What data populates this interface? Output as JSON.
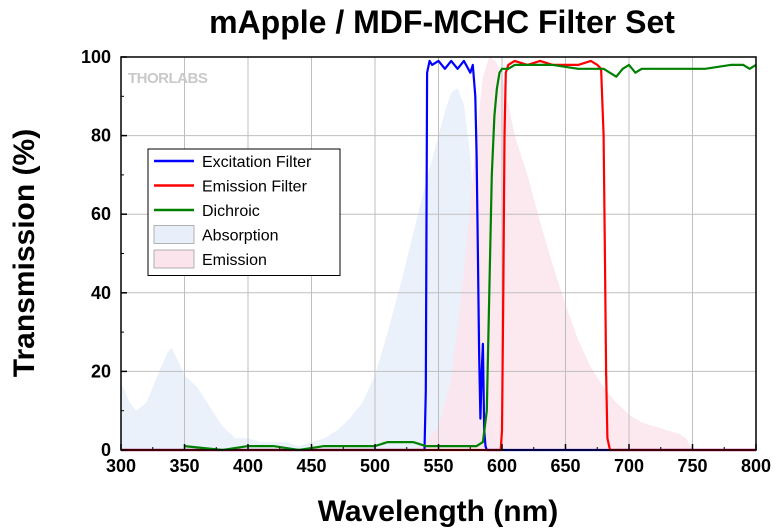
{
  "chart_data": {
    "type": "area",
    "title": "mApple / MDF-MCHC Filter Set",
    "xlabel": "Wavelength (nm)",
    "ylabel": "Transmission (%)",
    "xlim": [
      300,
      800
    ],
    "ylim": [
      0,
      100
    ],
    "xticks": [
      300,
      350,
      400,
      450,
      500,
      550,
      600,
      650,
      700,
      750,
      800
    ],
    "yticks": [
      0,
      20,
      40,
      60,
      80,
      100
    ],
    "grid": true,
    "legend_position": "left-middle",
    "watermark": "THORLABS",
    "series": [
      {
        "name": "Excitation Filter",
        "kind": "line",
        "color": "#0000ff",
        "x": [
          300,
          539,
          540,
          541,
          543,
          545,
          550,
          555,
          560,
          565,
          570,
          575,
          577,
          579,
          580,
          581,
          582,
          583,
          584,
          585,
          586,
          587,
          588,
          590,
          600,
          700,
          800
        ],
        "y": [
          0,
          0,
          15,
          96,
          99,
          98,
          99,
          97,
          99,
          97,
          99,
          96,
          98,
          90,
          75,
          50,
          25,
          8,
          20,
          27,
          5,
          1,
          0,
          0,
          0,
          0,
          0
        ]
      },
      {
        "name": "Emission Filter",
        "kind": "line",
        "color": "#ff0000",
        "x": [
          300,
          599,
          600,
          601,
          602,
          603,
          605,
          610,
          620,
          630,
          640,
          650,
          660,
          670,
          675,
          678,
          680,
          681,
          682,
          683,
          685,
          700,
          800
        ],
        "y": [
          0,
          0,
          5,
          40,
          80,
          96,
          98,
          99,
          98,
          99,
          98,
          98,
          98,
          99,
          98,
          97,
          80,
          50,
          20,
          3,
          0,
          0,
          0
        ],
        "extra": [
          [
            603,
            99
          ],
          [
            620,
            99
          ],
          [
            640,
            99
          ],
          [
            660,
            99
          ]
        ]
      },
      {
        "name": "Dichroic",
        "kind": "line",
        "color": "#008000",
        "x": [
          350,
          380,
          400,
          420,
          440,
          460,
          480,
          500,
          510,
          520,
          530,
          540,
          550,
          560,
          570,
          575,
          580,
          585,
          588,
          590,
          592,
          594,
          596,
          598,
          600,
          605,
          610,
          620,
          640,
          660,
          680,
          690,
          695,
          700,
          705,
          710,
          720,
          740,
          760,
          780,
          790,
          795,
          800
        ],
        "y": [
          1,
          0,
          1,
          1,
          0,
          1,
          1,
          1,
          2,
          2,
          2,
          1,
          1,
          1,
          1,
          1,
          1,
          2,
          10,
          40,
          70,
          85,
          92,
          96,
          97,
          97,
          98,
          98,
          98,
          97,
          97,
          95,
          97,
          98,
          96,
          97,
          97,
          97,
          97,
          98,
          98,
          97,
          98
        ]
      },
      {
        "name": "Absorption",
        "kind": "area",
        "color": "#e8eefa",
        "x": [
          300,
          303,
          307,
          312,
          320,
          330,
          337,
          340,
          343,
          350,
          360,
          370,
          380,
          390,
          400,
          410,
          420,
          430,
          440,
          450,
          460,
          470,
          480,
          490,
          500,
          510,
          520,
          530,
          540,
          550,
          555,
          560,
          565,
          570,
          575,
          580,
          585,
          590,
          595,
          600
        ],
        "y": [
          17,
          15,
          12,
          10,
          12,
          20,
          25,
          26,
          24,
          19,
          16,
          11,
          6,
          3,
          3,
          2,
          2,
          2,
          1,
          2,
          3,
          5,
          8,
          12,
          19,
          30,
          42,
          55,
          68,
          80,
          86,
          91,
          92,
          88,
          75,
          50,
          25,
          8,
          2,
          0
        ]
      },
      {
        "name": "Emission",
        "kind": "area",
        "color": "#fbe4ec",
        "x": [
          530,
          540,
          550,
          560,
          570,
          580,
          585,
          590,
          595,
          600,
          605,
          610,
          620,
          630,
          640,
          650,
          660,
          670,
          680,
          690,
          700,
          710,
          720,
          730,
          740,
          745,
          750
        ],
        "y": [
          0,
          2,
          6,
          18,
          45,
          80,
          95,
          100,
          99,
          95,
          88,
          80,
          70,
          58,
          47,
          37,
          28,
          21,
          16,
          12,
          9,
          7,
          6,
          5,
          4,
          3,
          0
        ]
      }
    ]
  }
}
